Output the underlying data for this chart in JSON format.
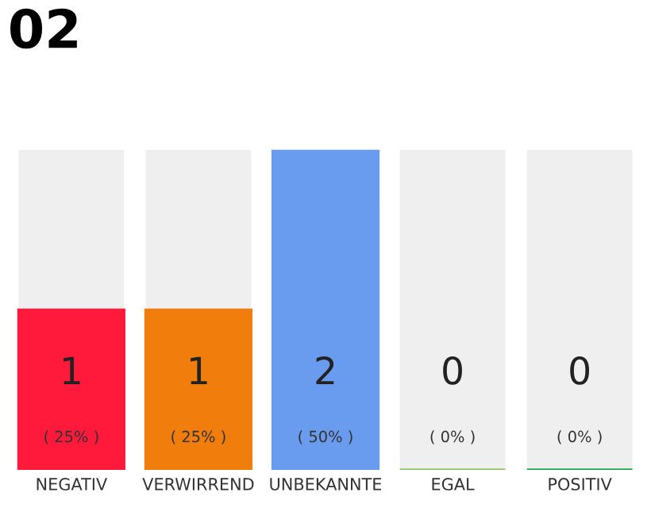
{
  "chart_data": {
    "type": "bar",
    "title": "02",
    "categories": [
      "NEGATIV",
      "VERWIRREND",
      "UNBEKANNTE",
      "EGAL",
      "POSITIV"
    ],
    "colors": [
      "#ff1a3c",
      "#f07d0c",
      "#699cee",
      "#8cc866",
      "#22a84a"
    ],
    "values": [
      1,
      1,
      2,
      0,
      0
    ],
    "data_labels": true,
    "annotations": [
      "( 25% )",
      "( 25% )",
      "( 50% )",
      "( 0% )",
      "( 0% )"
    ],
    "tick_labels": "x",
    "grid": false,
    "legend": false
  }
}
